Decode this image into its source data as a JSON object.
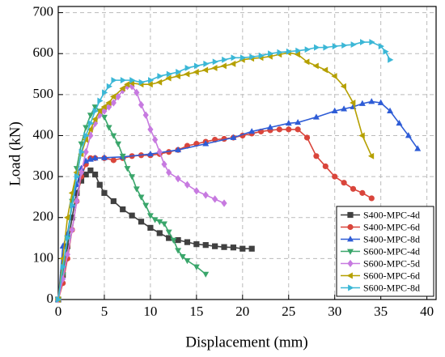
{
  "chart_data": {
    "type": "line",
    "x_label": "Displacement (mm)",
    "y_label": "Load (kN)",
    "xlim": [
      0,
      41
    ],
    "ylim": [
      0,
      715
    ],
    "xticks": [
      0,
      5,
      10,
      15,
      20,
      25,
      30,
      35,
      40
    ],
    "yticks": [
      0,
      100,
      200,
      300,
      400,
      500,
      600,
      700
    ],
    "grid": true,
    "legend": "lower right",
    "series": [
      {
        "name": "S400-MPC-4d",
        "color": "#404040",
        "marker": "square",
        "x": [
          0,
          0.5,
          1,
          1.5,
          2,
          2.5,
          3,
          3.5,
          4,
          4.5,
          5,
          6,
          7,
          8,
          9,
          10,
          11,
          12,
          13,
          14,
          15,
          16,
          17,
          18,
          19,
          20,
          21
        ],
        "values": [
          0,
          60,
          130,
          200,
          260,
          290,
          305,
          315,
          305,
          280,
          260,
          240,
          220,
          205,
          190,
          175,
          162,
          150,
          145,
          140,
          135,
          133,
          130,
          128,
          127,
          124,
          124
        ]
      },
      {
        "name": "S400-MPC-6d",
        "color": "#d9453b",
        "marker": "circle",
        "x": [
          0,
          0.5,
          1,
          1.5,
          2,
          2.5,
          3,
          3.5,
          4,
          5,
          6,
          7,
          8,
          9,
          10,
          11,
          12,
          13,
          14,
          15,
          16,
          17,
          18,
          19,
          20,
          21,
          22,
          23,
          24,
          25,
          26,
          27,
          28,
          29,
          30,
          31,
          32,
          33,
          34
        ],
        "values": [
          0,
          40,
          100,
          170,
          240,
          300,
          330,
          345,
          345,
          345,
          340,
          345,
          350,
          352,
          352,
          355,
          360,
          365,
          375,
          380,
          385,
          390,
          392,
          395,
          400,
          405,
          410,
          413,
          415,
          415,
          415,
          395,
          350,
          325,
          300,
          285,
          270,
          260,
          247
        ]
      },
      {
        "name": "S400-MPC-8d",
        "color": "#2e5cd6",
        "marker": "triangle-up",
        "x": [
          0,
          0.5,
          1,
          1.5,
          2,
          2.5,
          3,
          3.5,
          4,
          5,
          7,
          10,
          13,
          16,
          19,
          21,
          23,
          25,
          26,
          28,
          30,
          31,
          32,
          33,
          34,
          35,
          36,
          37,
          38,
          39
        ],
        "values": [
          0,
          130,
          160,
          230,
          280,
          320,
          338,
          342,
          345,
          346,
          348,
          355,
          365,
          380,
          395,
          410,
          420,
          430,
          432,
          445,
          460,
          465,
          470,
          478,
          483,
          480,
          460,
          430,
          400,
          368
        ]
      },
      {
        "name": "S600-MPC-4d",
        "color": "#3aa66b",
        "marker": "triangle-down",
        "x": [
          0,
          0.5,
          1,
          1.5,
          2,
          2.5,
          3,
          3.5,
          4,
          4.5,
          5,
          5.5,
          6,
          6.5,
          7,
          7.5,
          8,
          8.5,
          9,
          9.5,
          10,
          10.5,
          11,
          11.5,
          12,
          12.5,
          13,
          13.5,
          14,
          15,
          16
        ],
        "values": [
          0,
          60,
          150,
          240,
          320,
          380,
          420,
          450,
          470,
          460,
          445,
          420,
          400,
          380,
          350,
          320,
          300,
          270,
          250,
          230,
          205,
          195,
          190,
          185,
          165,
          145,
          120,
          105,
          95,
          80,
          62
        ]
      },
      {
        "name": "S600-MPC-5d",
        "color": "#c77ae0",
        "marker": "diamond",
        "x": [
          0,
          0.5,
          1,
          1.5,
          2,
          2.5,
          3,
          3.5,
          4,
          4.5,
          5,
          5.5,
          6,
          6.5,
          7,
          7.5,
          8,
          8.5,
          9,
          9.5,
          10,
          10.5,
          11,
          11.5,
          12,
          13,
          14,
          15,
          16,
          17,
          18
        ],
        "values": [
          0,
          50,
          110,
          170,
          240,
          310,
          360,
          400,
          430,
          450,
          460,
          470,
          480,
          495,
          510,
          520,
          520,
          505,
          475,
          450,
          415,
          390,
          360,
          330,
          310,
          295,
          280,
          265,
          255,
          245,
          235
        ]
      },
      {
        "name": "S600-MPC-6d",
        "color": "#b5a000",
        "marker": "triangle-left",
        "x": [
          0,
          0.5,
          1,
          1.5,
          2,
          2.5,
          3,
          3.5,
          4,
          4.5,
          5,
          5.5,
          6,
          7,
          7.5,
          8,
          9,
          10,
          11,
          12,
          13,
          14,
          15,
          16,
          17,
          18,
          19,
          20,
          21,
          22,
          23,
          24,
          25,
          26,
          27,
          28,
          29,
          30,
          31,
          32,
          33,
          34
        ],
        "values": [
          0,
          100,
          200,
          260,
          310,
          355,
          390,
          415,
          440,
          460,
          470,
          480,
          495,
          515,
          525,
          528,
          525,
          525,
          530,
          540,
          545,
          550,
          555,
          560,
          565,
          570,
          575,
          585,
          588,
          590,
          593,
          598,
          602,
          598,
          580,
          570,
          560,
          545,
          520,
          480,
          400,
          350
        ]
      },
      {
        "name": "S600-MPC-8d",
        "color": "#3bb7d6",
        "marker": "triangle-right",
        "x": [
          0,
          0.5,
          1,
          1.5,
          2,
          2.5,
          3,
          3.5,
          4,
          4.5,
          5,
          5.5,
          6,
          7,
          8,
          9,
          10,
          11,
          12,
          13,
          14,
          15,
          16,
          17,
          18,
          19,
          20,
          21,
          22,
          23,
          24,
          25,
          26,
          27,
          28,
          29,
          30,
          31,
          32,
          33,
          34,
          35,
          35.5,
          36
        ],
        "values": [
          0,
          80,
          150,
          230,
          300,
          360,
          400,
          430,
          460,
          485,
          505,
          520,
          535,
          535,
          535,
          530,
          535,
          545,
          550,
          555,
          565,
          570,
          575,
          580,
          585,
          590,
          590,
          592,
          595,
          600,
          603,
          605,
          607,
          610,
          615,
          615,
          618,
          620,
          622,
          628,
          628,
          618,
          605,
          585
        ]
      }
    ]
  }
}
